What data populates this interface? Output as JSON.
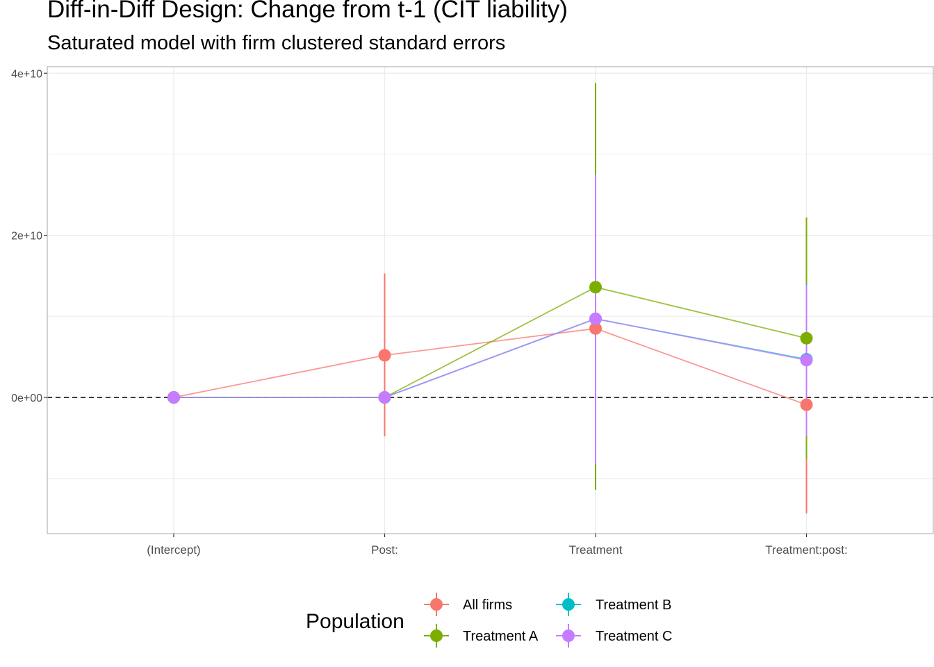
{
  "title": "Diff-in-Diff Design: Change from t-1 (CIT liability)",
  "subtitle": "Saturated model with firm clustered standard errors",
  "chart_data": {
    "type": "line",
    "categories": [
      "(Intercept)",
      "Post:",
      "Treatment",
      "Treatment:post:"
    ],
    "y_ticks": [
      0,
      20000000000,
      40000000000
    ],
    "y_tick_labels": [
      "0e+00",
      "2e+10",
      "4e+10"
    ],
    "ylim": [
      -16800000000,
      40800000000
    ],
    "reference_line": 0,
    "grid": true,
    "legend": {
      "title": "Population",
      "position": "bottom"
    },
    "series": [
      {
        "name": "All firms",
        "color": "#F8766D",
        "values": [
          0,
          5200000000,
          8500000000,
          -900000000
        ],
        "lower": [
          0,
          -4800000000,
          8500000000,
          -14300000000
        ],
        "upper": [
          0,
          15300000000,
          8500000000,
          12400000000
        ]
      },
      {
        "name": "Treatment A",
        "color": "#7CAE00",
        "values": [
          0,
          0,
          13600000000,
          7300000000
        ],
        "lower": [
          0,
          0,
          -11400000000,
          -7600000000
        ],
        "upper": [
          0,
          0,
          38800000000,
          22200000000
        ]
      },
      {
        "name": "Treatment B",
        "color": "#00BFC4",
        "values": [
          0,
          0,
          9700000000,
          4700000000
        ],
        "lower": [
          0,
          0,
          -8100000000,
          -4600000000
        ],
        "upper": [
          0,
          0,
          27500000000,
          14000000000
        ]
      },
      {
        "name": "Treatment C",
        "color": "#C77CFF",
        "values": [
          0,
          0,
          9700000000,
          4600000000
        ],
        "lower": [
          0,
          0,
          -8200000000,
          -4700000000
        ],
        "upper": [
          0,
          0,
          27500000000,
          13900000000
        ]
      }
    ]
  }
}
